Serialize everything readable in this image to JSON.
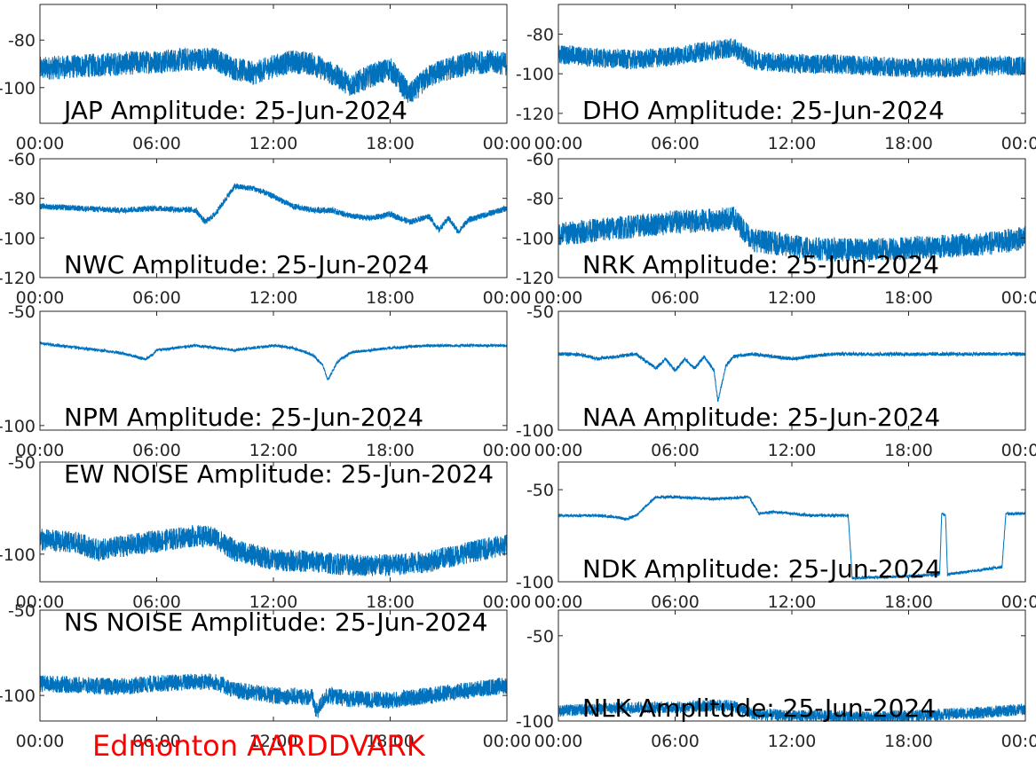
{
  "footer": {
    "text": "Edmonton AARDDVARK",
    "color": "#ff0000"
  },
  "trace_color": "#0072bd",
  "chart_data": [
    {
      "type": "line",
      "title": "JAP Amplitude: 25-Jun-2024",
      "x_range_hours": [
        0,
        24
      ],
      "x_ticks": [
        "00:00",
        "06:00",
        "12:00",
        "18:00",
        "00:00"
      ],
      "ylim": [
        -115,
        -65
      ],
      "y_ticks": [
        -80,
        -100
      ],
      "series": [
        {
          "x": [
            0,
            2,
            4,
            6,
            8,
            9,
            10,
            11,
            12,
            13,
            14,
            15,
            16,
            17,
            18,
            19,
            20,
            21,
            22,
            23,
            24
          ],
          "values": [
            -92,
            -91,
            -90,
            -89,
            -88,
            -88,
            -92,
            -94,
            -91,
            -89,
            -90,
            -94,
            -99,
            -95,
            -92,
            -103,
            -95,
            -92,
            -90,
            -89,
            -90
          ],
          "noise": 10
        }
      ]
    },
    {
      "type": "line",
      "title": "DHO Amplitude: 25-Jun-2024",
      "x_range_hours": [
        0,
        24
      ],
      "x_ticks": [
        "00:00",
        "06:00",
        "12:00",
        "18:00",
        "00:00"
      ],
      "ylim": [
        -125,
        -65
      ],
      "y_ticks": [
        -80,
        -100,
        -120
      ],
      "series": [
        {
          "x": [
            0,
            2,
            4,
            6,
            8,
            9,
            10,
            12,
            14,
            16,
            18,
            20,
            22,
            24
          ],
          "values": [
            -90,
            -92,
            -93,
            -91,
            -88,
            -87,
            -93,
            -95,
            -95,
            -96,
            -97,
            -97,
            -96,
            -96
          ],
          "noise": 10
        }
      ]
    },
    {
      "type": "line",
      "title": "NWC Amplitude: 25-Jun-2024",
      "x_range_hours": [
        0,
        24
      ],
      "x_ticks": [
        "00:00",
        "06:00",
        "12:00",
        "18:00",
        "00:00"
      ],
      "ylim": [
        -120,
        -60
      ],
      "y_ticks": [
        -60,
        -80,
        -100,
        -120
      ],
      "series": [
        {
          "x": [
            0,
            2,
            4,
            6,
            8,
            8.5,
            9,
            10,
            11,
            12,
            13,
            14,
            15,
            16,
            17,
            18,
            19,
            20,
            20.5,
            21,
            21.5,
            22,
            23,
            24
          ],
          "values": [
            -84,
            -85,
            -86,
            -85,
            -86,
            -92,
            -88,
            -74,
            -75,
            -79,
            -84,
            -86,
            -86,
            -89,
            -90,
            -88,
            -92,
            -89,
            -96,
            -90,
            -97,
            -91,
            -88,
            -85
          ],
          "noise": 3
        }
      ]
    },
    {
      "type": "line",
      "title": "NRK Amplitude: 25-Jun-2024",
      "x_range_hours": [
        0,
        24
      ],
      "x_ticks": [
        "00:00",
        "06:00",
        "12:00",
        "18:00",
        "00:00"
      ],
      "ylim": [
        -120,
        -60
      ],
      "y_ticks": [
        -60,
        -80,
        -100,
        -120
      ],
      "series": [
        {
          "x": [
            0,
            2,
            4,
            6,
            8,
            9,
            10,
            12,
            14,
            16,
            18,
            20,
            22,
            24
          ],
          "values": [
            -98,
            -96,
            -94,
            -92,
            -91,
            -90,
            -101,
            -104,
            -106,
            -106,
            -105,
            -104,
            -103,
            -100
          ],
          "noise": 12
        }
      ]
    },
    {
      "type": "line",
      "title": "NPM Amplitude: 25-Jun-2024",
      "x_range_hours": [
        0,
        24
      ],
      "x_ticks": [
        "00:00",
        "06:00",
        "12:00",
        "18:00",
        "00:00"
      ],
      "ylim": [
        -102,
        -50
      ],
      "y_ticks": [
        -50,
        -100
      ],
      "series": [
        {
          "x": [
            0,
            2,
            4,
            5,
            5.4,
            5.8,
            6,
            8,
            10,
            11,
            12,
            13,
            14,
            14.5,
            14.8,
            15.3,
            16,
            18,
            20,
            22,
            24
          ],
          "values": [
            -64,
            -66,
            -68,
            -70,
            -71,
            -69,
            -67,
            -65,
            -67,
            -66,
            -65,
            -66,
            -69,
            -73,
            -80,
            -72,
            -68,
            -66,
            -65,
            -65,
            -65
          ],
          "noise": 1.2
        }
      ]
    },
    {
      "type": "line",
      "title": "NAA Amplitude: 25-Jun-2024",
      "x_range_hours": [
        0,
        24
      ],
      "x_ticks": [
        "00:00",
        "06:00",
        "12:00",
        "18:00",
        "00:00"
      ],
      "ylim": [
        -100,
        -50
      ],
      "y_ticks": [
        -50,
        -100
      ],
      "series": [
        {
          "x": [
            0,
            1,
            2,
            3,
            4,
            5,
            5.5,
            6,
            6.5,
            7,
            7.5,
            8,
            8.2,
            8.6,
            9,
            10,
            12,
            14,
            16,
            18,
            20,
            22,
            24
          ],
          "values": [
            -68,
            -68,
            -70,
            -69,
            -68,
            -74,
            -70,
            -75,
            -70,
            -74,
            -69,
            -75,
            -88,
            -73,
            -69,
            -68,
            -70,
            -68,
            -68,
            -68,
            -68,
            -68,
            -68
          ],
          "noise": 1.5
        }
      ]
    },
    {
      "type": "line",
      "title": "EW NOISE Amplitude: 25-Jun-2024",
      "x_range_hours": [
        0,
        24
      ],
      "x_ticks": [
        "00:00",
        "06:00",
        "12:00",
        "18:00",
        "00:00"
      ],
      "ylim": [
        -115,
        -50
      ],
      "y_ticks": [
        -50,
        -100
      ],
      "series": [
        {
          "x": [
            0,
            2,
            3,
            4,
            6,
            8,
            9,
            10,
            12,
            14,
            16,
            18,
            20,
            22,
            24
          ],
          "values": [
            -92,
            -94,
            -98,
            -96,
            -93,
            -90,
            -91,
            -98,
            -103,
            -104,
            -106,
            -106,
            -104,
            -99,
            -95
          ],
          "noise": 12
        }
      ]
    },
    {
      "type": "line",
      "title": "NDK Amplitude: 25-Jun-2024",
      "x_range_hours": [
        0,
        24
      ],
      "x_ticks": [
        "00:00",
        "06:00",
        "12:00",
        "18:00",
        "00:00"
      ],
      "ylim": [
        -100,
        -35
      ],
      "y_ticks": [
        -50,
        -100
      ],
      "series": [
        {
          "x": [
            0,
            2,
            3,
            3.5,
            4,
            5,
            6,
            8,
            9.8,
            10.3,
            11,
            13,
            14.9,
            15.1,
            18,
            19.6,
            19.7,
            19.9,
            20,
            22.8,
            23,
            24
          ],
          "values": [
            -64,
            -64,
            -65,
            -66,
            -64,
            -54,
            -54,
            -55,
            -54,
            -63,
            -62,
            -64,
            -64,
            -98,
            -97,
            -96,
            -63,
            -64,
            -96,
            -92,
            -63,
            -63
          ],
          "noise": 1.5
        }
      ]
    },
    {
      "type": "line",
      "title": "NS NOISE Amplitude: 25-Jun-2024",
      "x_range_hours": [
        0,
        24
      ],
      "x_ticks": [
        "00:00",
        "06:00",
        "12:00",
        "18:00",
        "00:00"
      ],
      "ylim": [
        -115,
        -50
      ],
      "y_ticks": [
        -50,
        -100
      ],
      "series": [
        {
          "x": [
            0,
            2,
            4,
            6,
            8,
            9,
            10,
            12,
            14,
            14.2,
            14.7,
            16,
            18,
            20,
            22,
            24
          ],
          "values": [
            -93,
            -94,
            -95,
            -93,
            -92,
            -92,
            -97,
            -100,
            -101,
            -110,
            -100,
            -102,
            -103,
            -100,
            -97,
            -94
          ],
          "noise": 10
        }
      ]
    },
    {
      "type": "line",
      "title": "NLK Amplitude: 25-Jun-2024",
      "x_range_hours": [
        0,
        24
      ],
      "x_ticks": [
        "00:00",
        "06:00",
        "12:00",
        "18:00",
        "00:00"
      ],
      "ylim": [
        -100,
        -35
      ],
      "y_ticks": [
        -50,
        -100
      ],
      "series": [
        {
          "x": [
            0,
            2,
            4,
            6,
            8,
            9,
            10,
            12,
            14,
            16,
            18,
            20,
            22,
            24
          ],
          "values": [
            -94,
            -93,
            -92,
            -92,
            -91,
            -91,
            -96,
            -97,
            -97,
            -98,
            -97,
            -96,
            -95,
            -93
          ],
          "noise": 7
        }
      ]
    }
  ]
}
